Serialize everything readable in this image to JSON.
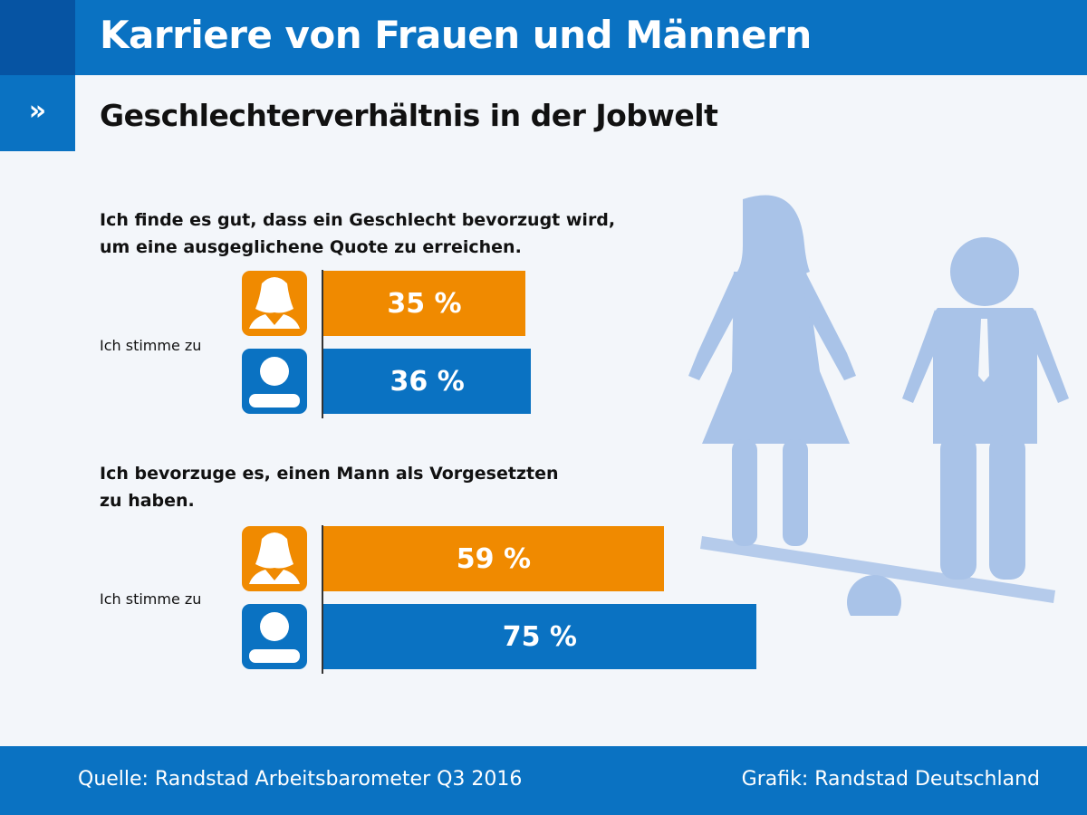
{
  "header": {
    "title": "Karriere von Frauen und Männern",
    "tab_icon": "»"
  },
  "subtitle": "Geschlechterverhältnis in der Jobwelt",
  "colors": {
    "women": "#f08a00",
    "men": "#0a72c2",
    "header": "#0a72c2",
    "silhouette": "#a9c3e8"
  },
  "chart_data": [
    {
      "type": "bar",
      "orientation": "horizontal",
      "title": "Ich finde es gut, dass ein Geschlecht bevorzugt wird, um eine ausgeglichene Quote zu erreichen.",
      "category": "Ich stimme zu",
      "series": [
        {
          "icon": "woman-icon",
          "value": 35,
          "label": "35 %"
        },
        {
          "icon": "man-icon",
          "value": 36,
          "label": "36 %"
        }
      ],
      "unit": "%"
    },
    {
      "type": "bar",
      "orientation": "horizontal",
      "title": "Ich bevorzuge es, einen Mann als Vorgesetzten zu haben.",
      "category": "Ich stimme zu",
      "series": [
        {
          "icon": "woman-icon",
          "value": 59,
          "label": "59 %"
        },
        {
          "icon": "man-icon",
          "value": 75,
          "label": "75 %"
        }
      ],
      "unit": "%"
    }
  ],
  "questions": [
    {
      "line1": "Ich finde es gut, dass ein Geschlecht bevorzugt wird,",
      "line2": "um eine ausgeglichene Quote zu erreichen."
    },
    {
      "line1": "Ich bevorzuge es, einen Mann als Vorgesetzten",
      "line2": "zu haben."
    }
  ],
  "footer": {
    "source": "Quelle: Randstad Arbeitsbarometer Q3 2016",
    "credit": "Grafik: Randstad Deutschland"
  }
}
